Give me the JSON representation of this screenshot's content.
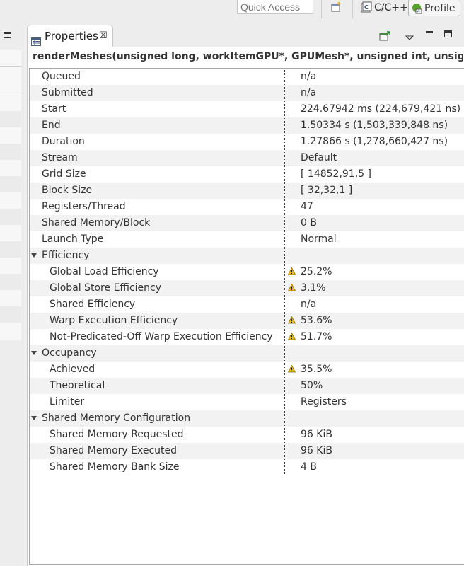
{
  "toolbar": {
    "quick_access_placeholder": "Quick Access",
    "open_perspective_icon": "open-perspective-icon",
    "perspectives": [
      {
        "label": "C/C++",
        "icon": "cpp-perspective-icon"
      },
      {
        "label": "Profile",
        "icon": "profile-perspective-icon",
        "active": true
      }
    ]
  },
  "properties_view": {
    "tab_label": "Properties",
    "tab_icon": "properties-icon",
    "close_glyph": "☒",
    "title": "renderMeshes(unsigned long, workItemGPU*, GPUMesh*, unsigned int, unsigned int…",
    "rows": [
      {
        "name": "Queued",
        "value": "n/a",
        "indent": 0,
        "warn": false
      },
      {
        "name": "Submitted",
        "value": "n/a",
        "indent": 0,
        "warn": false
      },
      {
        "name": "Start",
        "value": "224.67942 ms (224,679,421 ns)",
        "indent": 0,
        "warn": false
      },
      {
        "name": "End",
        "value": "1.50334 s (1,503,339,848 ns)",
        "indent": 0,
        "warn": false
      },
      {
        "name": "Duration",
        "value": "1.27866 s (1,278,660,427 ns)",
        "indent": 0,
        "warn": false
      },
      {
        "name": "Stream",
        "value": "Default",
        "indent": 0,
        "warn": false
      },
      {
        "name": "Grid Size",
        "value": "[ 14852,91,5 ]",
        "indent": 0,
        "warn": false
      },
      {
        "name": "Block Size",
        "value": "[ 32,32,1 ]",
        "indent": 0,
        "warn": false
      },
      {
        "name": "Registers/Thread",
        "value": "47",
        "indent": 0,
        "warn": false
      },
      {
        "name": "Shared  Memory/Block",
        "value": "0 B",
        "indent": 0,
        "warn": false
      },
      {
        "name": "Launch Type",
        "value": "Normal",
        "indent": 0,
        "warn": false
      },
      {
        "name": "Efficiency",
        "value": "",
        "indent": 0,
        "group": true,
        "warn": false
      },
      {
        "name": "Global Load Efficiency",
        "value": "25.2%",
        "indent": 1,
        "warn": true
      },
      {
        "name": "Global Store Efficiency",
        "value": "3.1%",
        "indent": 1,
        "warn": true
      },
      {
        "name": "Shared Efficiency",
        "value": "n/a",
        "indent": 1,
        "warn": false
      },
      {
        "name": "Warp Execution Efficiency",
        "value": "53.6%",
        "indent": 1,
        "warn": true
      },
      {
        "name": "Not-Predicated-Off Warp Execution Efficiency",
        "value": "51.7%",
        "indent": 1,
        "warn": true
      },
      {
        "name": "Occupancy",
        "value": "",
        "indent": 0,
        "group": true,
        "warn": false
      },
      {
        "name": "Achieved",
        "value": "35.5%",
        "indent": 1,
        "warn": true
      },
      {
        "name": "Theoretical",
        "value": "50%",
        "indent": 1,
        "warn": false
      },
      {
        "name": "Limiter",
        "value": "Registers",
        "indent": 1,
        "warn": false
      },
      {
        "name": "Shared Memory Configuration",
        "value": "",
        "indent": 0,
        "group": true,
        "warn": false
      },
      {
        "name": "Shared Memory Requested",
        "value": "96 KiB",
        "indent": 1,
        "warn": false
      },
      {
        "name": "Shared Memory Executed",
        "value": "96 KiB",
        "indent": 1,
        "warn": false
      },
      {
        "name": "Shared Memory Bank Size",
        "value": "4 B",
        "indent": 1,
        "warn": false
      }
    ]
  },
  "colors": {
    "warning": "#f0c000",
    "stripe": "#f2f2f2",
    "background": "#ededed"
  }
}
